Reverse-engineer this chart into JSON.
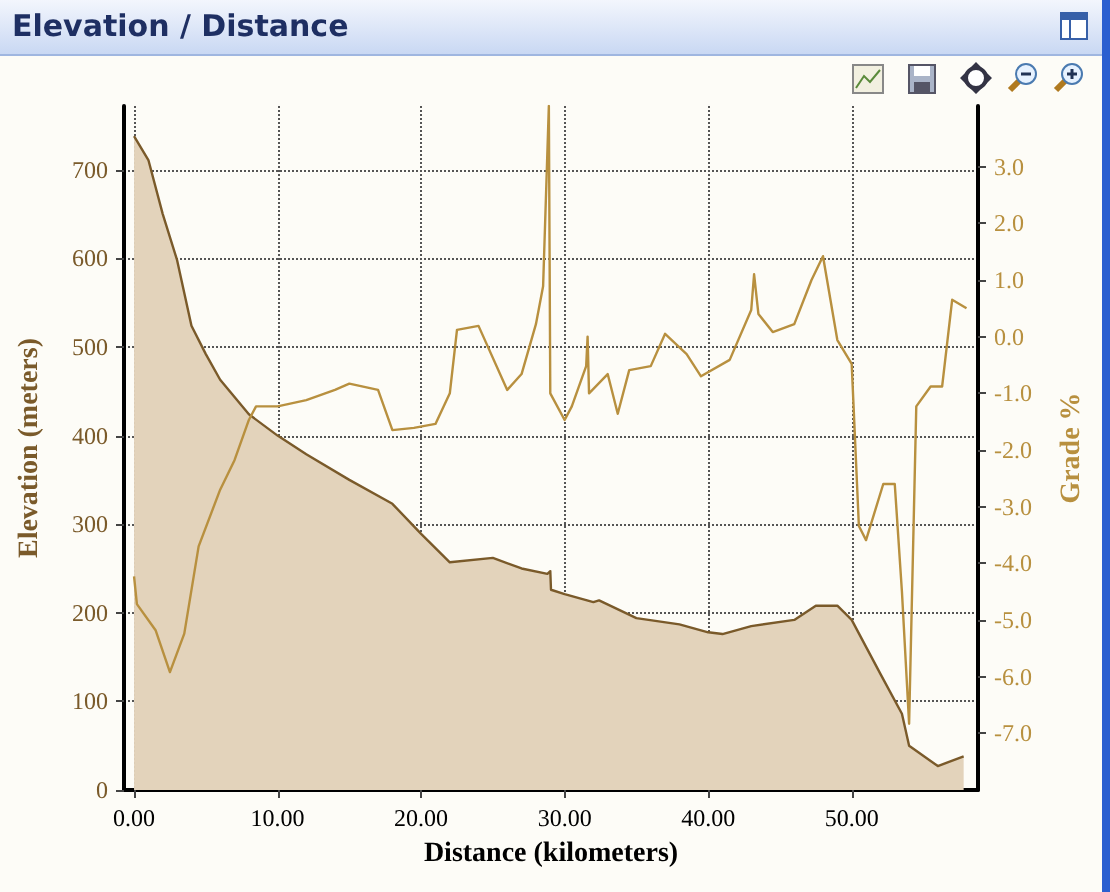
{
  "chart_data": {
    "type": "area",
    "title": "Elevation / Distance",
    "xlabel": "Distance (kilometers)",
    "ylabel": "Elevation (meters)",
    "y2label": "Grade %",
    "xlim": [
      -0.7,
      58.8
    ],
    "xticks": [
      {
        "value": 0,
        "label": "0.00"
      },
      {
        "value": 10,
        "label": "10.00"
      },
      {
        "value": 20,
        "label": "20.00"
      },
      {
        "value": 30,
        "label": "30.00"
      },
      {
        "value": 40,
        "label": "40.00"
      },
      {
        "value": 50,
        "label": "50.00"
      }
    ],
    "ylim": [
      0,
      772
    ],
    "yticks": [
      0,
      100,
      200,
      300,
      400,
      500,
      600,
      700
    ],
    "y2lim": [
      -8,
      4.07
    ],
    "y2ticks": [
      {
        "value": -7,
        "label": "-7.0"
      },
      {
        "value": -6,
        "label": "-6.0"
      },
      {
        "value": -5,
        "label": "-5.0"
      },
      {
        "value": -4,
        "label": "-4.0"
      },
      {
        "value": -3,
        "label": "-3.0"
      },
      {
        "value": -2,
        "label": "-2.0"
      },
      {
        "value": -1,
        "label": "-1.0"
      },
      {
        "value": 0,
        "label": "0.0"
      },
      {
        "value": 1,
        "label": "1.0"
      },
      {
        "value": 2,
        "label": "2.0"
      },
      {
        "value": 3,
        "label": "3.0"
      }
    ],
    "grid": true,
    "marker": "none",
    "line_style": "solid",
    "series": [
      {
        "color": "#7a5a2a",
        "x": [
          0,
          1,
          2,
          3,
          4,
          5,
          6,
          8,
          10,
          12,
          15,
          18,
          20,
          22,
          25,
          27,
          28.8,
          29,
          29.05,
          30,
          32,
          32.4,
          35,
          38,
          40,
          41,
          43,
          46,
          47.5,
          49,
          50,
          52,
          53.5,
          54,
          56,
          57.8
        ],
        "values": [
          738,
          711,
          650,
          598,
          524,
          492,
          463,
          424,
          400,
          379,
          350,
          323,
          289,
          257,
          262,
          250,
          244,
          247,
          226,
          221,
          212,
          214,
          194,
          187,
          178,
          176,
          185,
          192,
          208,
          208,
          192,
          131,
          86,
          50,
          27,
          38
        ]
      },
      {
        "type": "line",
        "axis": "y2",
        "color": "#b8903f",
        "x": [
          0,
          0.2,
          1.5,
          2.5,
          3.5,
          4.5,
          6,
          7,
          8,
          8.5,
          10,
          12,
          14,
          15,
          17,
          18,
          19.5,
          21,
          22,
          22.5,
          24,
          26,
          27,
          28,
          28.5,
          28.9,
          29,
          30,
          30.5,
          31.5,
          31.6,
          31.7,
          33,
          33.7,
          34.5,
          36,
          37,
          38.5,
          39.5,
          41.5,
          43,
          43.2,
          43.5,
          44.5,
          46,
          47.2,
          48,
          49,
          50,
          50.5,
          51,
          52.2,
          53,
          53.5,
          54,
          54.5,
          55.5,
          56.3,
          57,
          58
        ],
        "values": [
          -4.23,
          -4.72,
          -5.18,
          -5.92,
          -5.24,
          -3.7,
          -2.7,
          -2.18,
          -1.47,
          -1.23,
          -1.23,
          -1.12,
          -0.94,
          -0.83,
          -0.94,
          -1.65,
          -1.61,
          -1.54,
          -1.0,
          0.12,
          0.19,
          -0.94,
          -0.66,
          0.22,
          0.89,
          4.07,
          -1.0,
          -1.47,
          -1.23,
          -0.52,
          0.0,
          -1.0,
          -0.66,
          -1.36,
          -0.59,
          -0.52,
          0.05,
          -0.31,
          -0.7,
          -0.41,
          0.47,
          1.1,
          0.4,
          0.08,
          0.22,
          1.0,
          1.42,
          -0.06,
          -0.48,
          -3.34,
          -3.59,
          -2.6,
          -2.6,
          -4.5,
          -6.83,
          -1.23,
          -0.88,
          -0.88,
          0.65,
          0.5
        ]
      }
    ]
  }
}
